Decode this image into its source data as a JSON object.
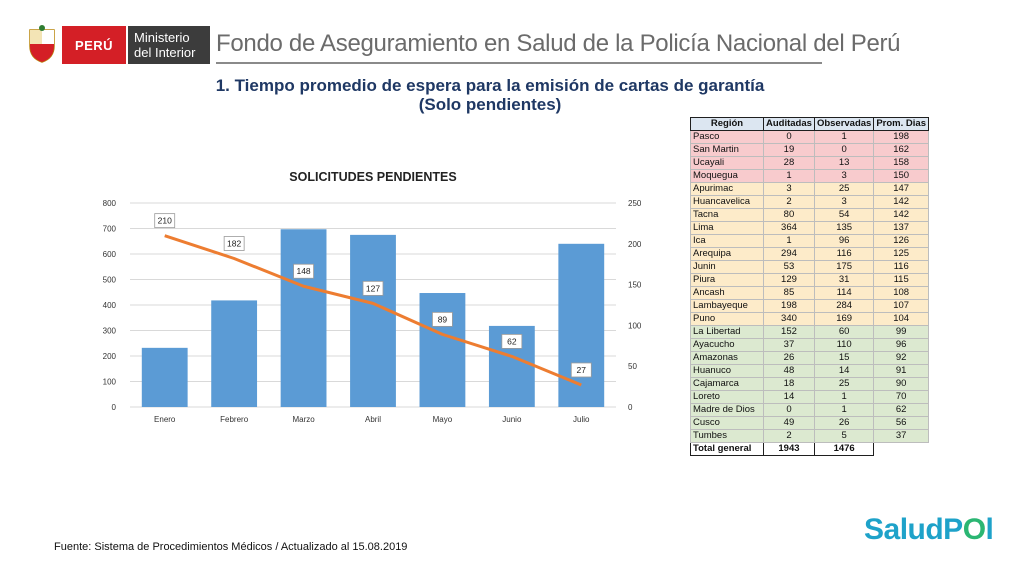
{
  "header": {
    "peru_label": "PERÚ",
    "ministry_line1": "Ministerio",
    "ministry_line2": "del Interior",
    "org_title": "Fondo de Aseguramiento en Salud de la Policía Nacional del Perú"
  },
  "title": {
    "line1": "1. Tiempo promedio de espera para la emisión de cartas de garantía",
    "line2": "(Solo pendientes)"
  },
  "chart_data": {
    "type": "bar",
    "title": "SOLICITUDES PENDIENTES",
    "categories": [
      "Enero",
      "Febrero",
      "Marzo",
      "Abril",
      "Mayo",
      "Junio",
      "Julio"
    ],
    "series": [
      {
        "type": "bar",
        "axis": "left",
        "values": [
          232,
          418,
          697,
          675,
          447,
          318,
          640
        ]
      },
      {
        "type": "line",
        "axis": "right",
        "values": [
          210,
          182,
          148,
          127,
          89,
          62,
          27
        ]
      }
    ],
    "y_left": {
      "min": 0,
      "max": 800,
      "ticks": [
        0,
        100,
        200,
        300,
        400,
        500,
        600,
        700,
        800
      ]
    },
    "y_right": {
      "min": 0,
      "max": 250,
      "ticks": [
        0,
        50,
        100,
        150,
        200,
        250
      ]
    },
    "colors": {
      "bar": "#5b9bd5",
      "line": "#ed7d31",
      "grid": "#d9d9d9"
    },
    "legend": "none"
  },
  "table": {
    "headers": [
      "Región",
      "Auditadas",
      "Observadas",
      "Prom. Dias"
    ],
    "rows": [
      {
        "region": "Pasco",
        "auditadas": "0",
        "observadas": "1",
        "prom": "198",
        "band": "red"
      },
      {
        "region": "San Martin",
        "auditadas": "19",
        "observadas": "0",
        "prom": "162",
        "band": "red"
      },
      {
        "region": "Ucayali",
        "auditadas": "28",
        "observadas": "13",
        "prom": "158",
        "band": "red"
      },
      {
        "region": "Moquegua",
        "auditadas": "1",
        "observadas": "3",
        "prom": "150",
        "band": "red"
      },
      {
        "region": "Apurimac",
        "auditadas": "3",
        "observadas": "25",
        "prom": "147",
        "band": "amber"
      },
      {
        "region": "Huancavelica",
        "auditadas": "2",
        "observadas": "3",
        "prom": "142",
        "band": "amber"
      },
      {
        "region": "Tacna",
        "auditadas": "80",
        "observadas": "54",
        "prom": "142",
        "band": "amber"
      },
      {
        "region": "Lima",
        "auditadas": "364",
        "observadas": "135",
        "prom": "137",
        "band": "amber"
      },
      {
        "region": "Ica",
        "auditadas": "1",
        "observadas": "96",
        "prom": "126",
        "band": "amber"
      },
      {
        "region": "Arequipa",
        "auditadas": "294",
        "observadas": "116",
        "prom": "125",
        "band": "amber"
      },
      {
        "region": "Junin",
        "auditadas": "53",
        "observadas": "175",
        "prom": "116",
        "band": "amber"
      },
      {
        "region": "Piura",
        "auditadas": "129",
        "observadas": "31",
        "prom": "115",
        "band": "amber"
      },
      {
        "region": "Ancash",
        "auditadas": "85",
        "observadas": "114",
        "prom": "108",
        "band": "amber"
      },
      {
        "region": "Lambayeque",
        "auditadas": "198",
        "observadas": "284",
        "prom": "107",
        "band": "amber"
      },
      {
        "region": "Puno",
        "auditadas": "340",
        "observadas": "169",
        "prom": "104",
        "band": "amber"
      },
      {
        "region": "La Libertad",
        "auditadas": "152",
        "observadas": "60",
        "prom": "99",
        "band": "green"
      },
      {
        "region": "Ayacucho",
        "auditadas": "37",
        "observadas": "110",
        "prom": "96",
        "band": "green"
      },
      {
        "region": "Amazonas",
        "auditadas": "26",
        "observadas": "15",
        "prom": "92",
        "band": "green"
      },
      {
        "region": "Huanuco",
        "auditadas": "48",
        "observadas": "14",
        "prom": "91",
        "band": "green"
      },
      {
        "region": "Cajamarca",
        "auditadas": "18",
        "observadas": "25",
        "prom": "90",
        "band": "green"
      },
      {
        "region": "Loreto",
        "auditadas": "14",
        "observadas": "1",
        "prom": "70",
        "band": "green"
      },
      {
        "region": "Madre de Dios",
        "auditadas": "0",
        "observadas": "1",
        "prom": "62",
        "band": "green"
      },
      {
        "region": "Cusco",
        "auditadas": "49",
        "observadas": "26",
        "prom": "56",
        "band": "green"
      },
      {
        "region": "Tumbes",
        "auditadas": "2",
        "observadas": "5",
        "prom": "37",
        "band": "green"
      }
    ],
    "total": {
      "label": "Total general",
      "auditadas": "1943",
      "observadas": "1476"
    }
  },
  "footer": {
    "source": "Fuente: Sistema de Procedimientos Médicos / Actualizado al 15.08.2019",
    "logo_part1": "SaludP",
    "logo_part2": "O",
    "logo_part3": "l"
  }
}
